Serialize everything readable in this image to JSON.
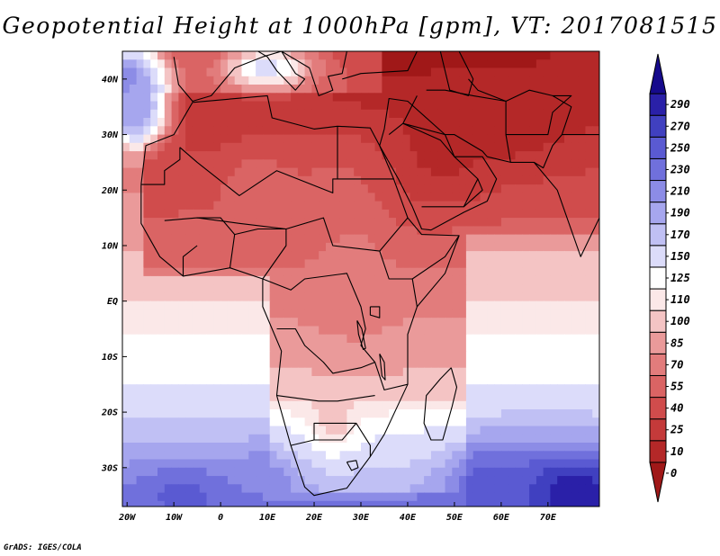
{
  "title": "Geopotential Height at 1000hPa [gpm], VT: 2017081515",
  "credit": "GrADS: IGES/COLA",
  "chart_data": {
    "type": "heatmap",
    "title": "Geopotential Height at 1000hPa [gpm], VT: 2017081515",
    "variable": "Geopotential Height",
    "level": "1000hPa",
    "units": "gpm",
    "valid_time": "2017081515",
    "lon_range": [
      -21,
      81
    ],
    "lat_range": [
      -37,
      45
    ],
    "xticks": [
      {
        "value": -20,
        "label": "20W"
      },
      {
        "value": -10,
        "label": "10W"
      },
      {
        "value": 0,
        "label": "0"
      },
      {
        "value": 10,
        "label": "10E"
      },
      {
        "value": 20,
        "label": "20E"
      },
      {
        "value": 30,
        "label": "30E"
      },
      {
        "value": 40,
        "label": "40E"
      },
      {
        "value": 50,
        "label": "50E"
      },
      {
        "value": 60,
        "label": "60E"
      },
      {
        "value": 70,
        "label": "70E"
      }
    ],
    "yticks": [
      {
        "value": 40,
        "label": "40N"
      },
      {
        "value": 30,
        "label": "30N"
      },
      {
        "value": 20,
        "label": "20N"
      },
      {
        "value": 10,
        "label": "10N"
      },
      {
        "value": 0,
        "label": "EQ"
      },
      {
        "value": -10,
        "label": "10S"
      },
      {
        "value": -20,
        "label": "20S"
      },
      {
        "value": -30,
        "label": "30S"
      }
    ],
    "colorbar": {
      "levels": [
        0,
        10,
        25,
        40,
        55,
        70,
        85,
        100,
        110,
        125,
        150,
        170,
        190,
        210,
        230,
        250,
        270,
        290
      ],
      "colors": [
        "#a01818",
        "#b42828",
        "#c43a3a",
        "#d04c4c",
        "#da6464",
        "#e27c7c",
        "#ea9a9a",
        "#f4c4c4",
        "#fbe8e8",
        "#ffffff",
        "#dcdcfa",
        "#c0c0f4",
        "#a6a6ee",
        "#8c8ce6",
        "#7070dc",
        "#5a5ad2",
        "#4040c0",
        "#2a20a8",
        "#160a8c"
      ]
    },
    "field_features": [
      {
        "lon": 45,
        "lat": 27,
        "value": 5,
        "sx": 13,
        "sy": 10
      },
      {
        "lon": 62,
        "lat": 33,
        "value": 2,
        "sx": 14,
        "sy": 9
      },
      {
        "lon": 78,
        "lat": 40,
        "value": 5,
        "sx": 10,
        "sy": 9
      },
      {
        "lon": 25,
        "lat": 22,
        "value": 40,
        "sx": 12,
        "sy": 8
      },
      {
        "lon": 8,
        "lat": 20,
        "value": 48,
        "sx": 9,
        "sy": 8
      },
      {
        "lon": 28,
        "lat": 5,
        "value": 60,
        "sx": 8,
        "sy": 12
      },
      {
        "lon": 24,
        "lat": -22,
        "value": 95,
        "sx": 6,
        "sy": 6
      },
      {
        "lon": 75,
        "lat": -35,
        "value": 290,
        "sx": 13,
        "sy": 8
      },
      {
        "lon": 58,
        "lat": -33,
        "value": 240,
        "sx": 10,
        "sy": 7
      },
      {
        "lon": -8,
        "lat": -35,
        "value": 235,
        "sx": 11,
        "sy": 6
      },
      {
        "lon": 10,
        "lat": -33,
        "value": 210,
        "sx": 7,
        "sy": 6
      },
      {
        "lon": -20,
        "lat": 40,
        "value": 200,
        "sx": 8,
        "sy": 7
      },
      {
        "lon": -18,
        "lat": 34,
        "value": 190,
        "sx": 6,
        "sy": 6
      },
      {
        "lon": 10,
        "lat": 42,
        "value": 135,
        "sx": 10,
        "sy": 4
      }
    ]
  }
}
